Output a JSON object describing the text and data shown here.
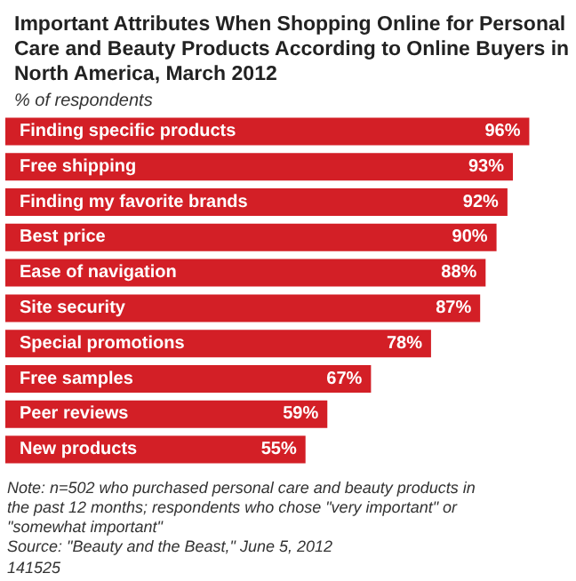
{
  "chart_data": {
    "type": "bar",
    "orientation": "horizontal",
    "title": "Important Attributes When Shopping Online for Personal Care and Beauty Products According to Online Buyers in North America, March 2012",
    "subtitle": "% of respondents",
    "categories": [
      "Finding specific products",
      "Free shipping",
      "Finding my favorite brands",
      "Best price",
      "Ease of navigation",
      "Site security",
      "Special promotions",
      "Free samples",
      "Peer reviews",
      "New products"
    ],
    "values": [
      96,
      93,
      92,
      90,
      88,
      87,
      78,
      67,
      59,
      55
    ],
    "value_labels": [
      "96%",
      "93%",
      "92%",
      "90%",
      "88%",
      "87%",
      "78%",
      "67%",
      "59%",
      "55%"
    ],
    "color": "#d31f26",
    "annotations": [
      "Note: n=502 who purchased personal care and beauty products in the past 12 months; respondents who chose \"very important\" or \"somewhat important\"",
      "Source: \"Beauty and the Beast,\" June 5, 2012",
      "141525"
    ]
  }
}
